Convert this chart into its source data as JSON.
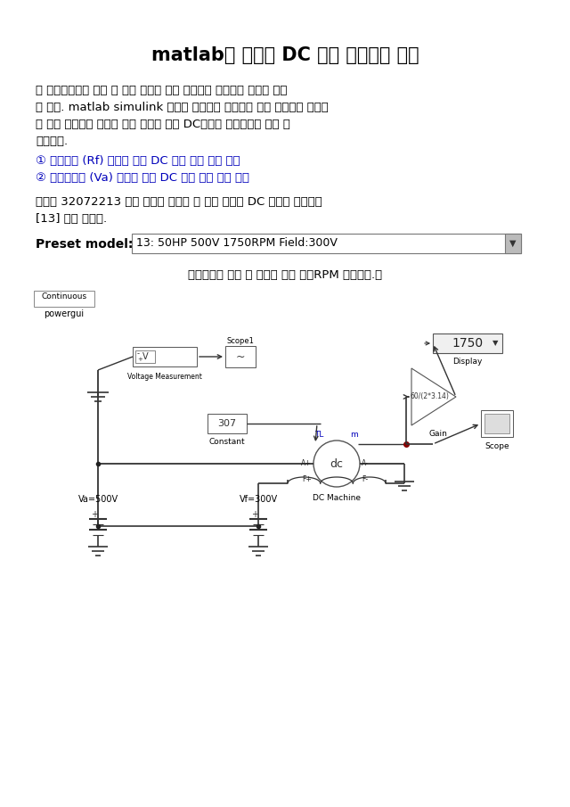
{
  "title": "matlab을 이용한 DC 모터 속도제어 설계",
  "body1_lines": [
    "이 설계보고서는 아래 두 가지 사항에 대해 설계하고 이해하는 과정을 다루",
    "고 있다. matlab simulink 기능을 이용하여 회로도를 직접 작성하고 그래프",
    "를 보고 이해하여 전압과 저항 변화에 따른 DC모터의 속도변화에 대해 기",
    "록하였다."
  ],
  "item1": "① 게자저항 (Rf) 변화에 따른 DC 모터 속도 제어 방법",
  "item2": "② 전기자전압 (Va) 변화에 따른 DC 모터 속도 제어 방법",
  "body2_lines": [
    "학번이 32072213 이기 때문에 마지막 두 자리 숫자를 DC 모터의 모델번호",
    "[13] 으로 하였다."
  ],
  "preset_label": "Preset model:",
  "preset_value": "13: 50HP 500V 1750RPM Field:300V",
  "caption": "〈게자저항 없을 시 부하를 통해 정격RPM 맞춰보자.〉",
  "bg_color": "#ffffff",
  "text_color": "#000000",
  "blue_color": "#0000bb",
  "diagram_line_color": "#333333"
}
